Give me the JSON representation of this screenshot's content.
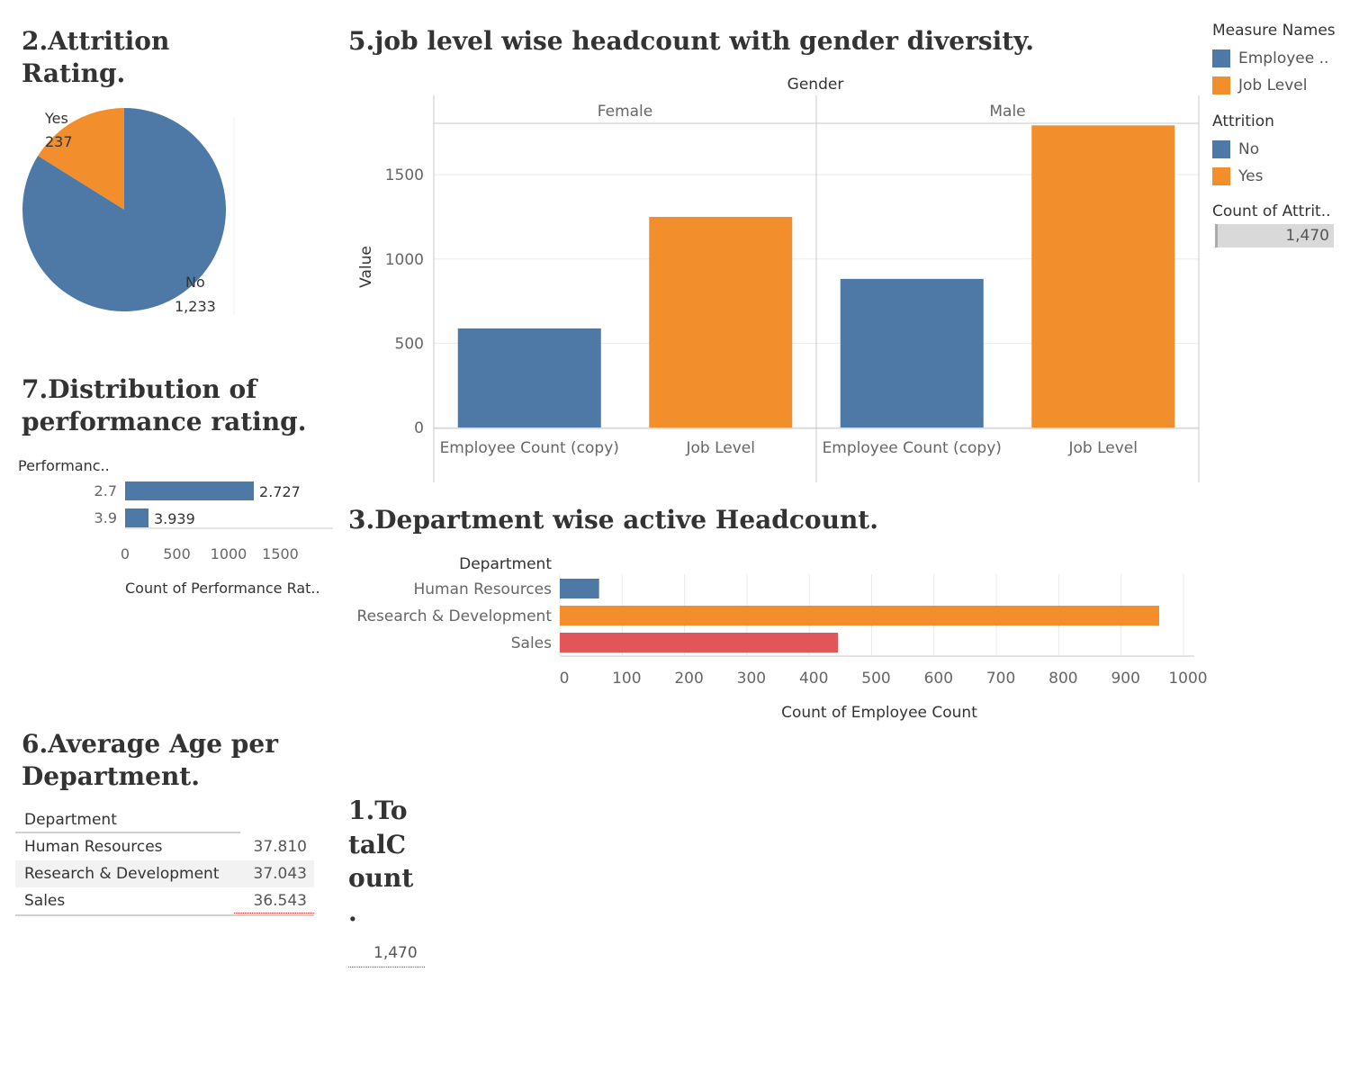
{
  "titles": {
    "attrition": "2.Attrition Rating.",
    "job_level": "5.job level wise headcount with gender diversity.",
    "performance": "7.Distribution of performance rating.",
    "department": "3.Department wise active Headcount.",
    "age": "6.Average Age per Department.",
    "total": "1.To talC ount ."
  },
  "colors": {
    "blue": "#4e79a7",
    "orange": "#f28e2b",
    "red": "#e15759",
    "grid": "#ebebeb",
    "axis": "#c8c8c8"
  },
  "legend": {
    "measure_names_title": "Measure Names",
    "measure_names": [
      {
        "label": "Employee ..",
        "color": "#4e79a7"
      },
      {
        "label": "Job Level",
        "color": "#f28e2b"
      }
    ],
    "attrition_title": "Attrition",
    "attrition": [
      {
        "label": "No",
        "color": "#4e79a7"
      },
      {
        "label": "Yes",
        "color": "#f28e2b"
      }
    ],
    "count_title": "Count of Attrit..",
    "count_value": "1,470"
  },
  "age_table": {
    "header": "Department",
    "rows": [
      {
        "department": "Human Resources",
        "value": "37.810"
      },
      {
        "department": "Research & Development",
        "value": "37.043"
      },
      {
        "department": "Sales",
        "value": "36.543"
      }
    ]
  },
  "total": {
    "value": "1,470"
  },
  "chart_data": [
    {
      "id": "attrition-pie",
      "type": "pie",
      "title": "2.Attrition Rating.",
      "slices": [
        {
          "label": "Yes",
          "value": 237,
          "display": "237",
          "color": "#f28e2b"
        },
        {
          "label": "No",
          "value": 1233,
          "display": "1,233",
          "color": "#4e79a7"
        }
      ]
    },
    {
      "id": "job-level-gender",
      "type": "bar",
      "title": "5.job level wise headcount with gender diversity.",
      "facet_label": "Gender",
      "ylabel": "Value",
      "ylim": [
        0,
        1800
      ],
      "yticks": [
        0,
        500,
        1000,
        1500
      ],
      "categories": [
        "Employee Count (copy)",
        "Job Level"
      ],
      "category_colors": [
        "#4e79a7",
        "#f28e2b"
      ],
      "panels": [
        {
          "name": "Female",
          "values": [
            588,
            1250
          ]
        },
        {
          "name": "Male",
          "values": [
            882,
            1793
          ]
        }
      ],
      "grid": true
    },
    {
      "id": "performance-rating",
      "type": "bar",
      "orientation": "horizontal",
      "title": "7.Distribution of performance rating.",
      "row_header": "Performanc..",
      "categories": [
        "2.7",
        "3.9"
      ],
      "values": [
        1244,
        226
      ],
      "data_labels": [
        "2.727",
        "3.939"
      ],
      "xlabel": "Count of Performance Rat..",
      "xlim": [
        0,
        1650
      ],
      "xticks": [
        0,
        500,
        1000,
        1500
      ],
      "color": "#4e79a7"
    },
    {
      "id": "department-headcount",
      "type": "bar",
      "orientation": "horizontal",
      "title": "3.Department wise active Headcount.",
      "row_header": "Department",
      "categories": [
        "Human Resources",
        "Research & Development",
        "Sales"
      ],
      "values": [
        63,
        961,
        446
      ],
      "colors": [
        "#4e79a7",
        "#f28e2b",
        "#e15759"
      ],
      "xlabel": "Count of Employee Count",
      "xlim": [
        0,
        1000
      ],
      "xticks": [
        0,
        100,
        200,
        300,
        400,
        500,
        600,
        700,
        800,
        900,
        1000
      ],
      "grid": true
    }
  ]
}
